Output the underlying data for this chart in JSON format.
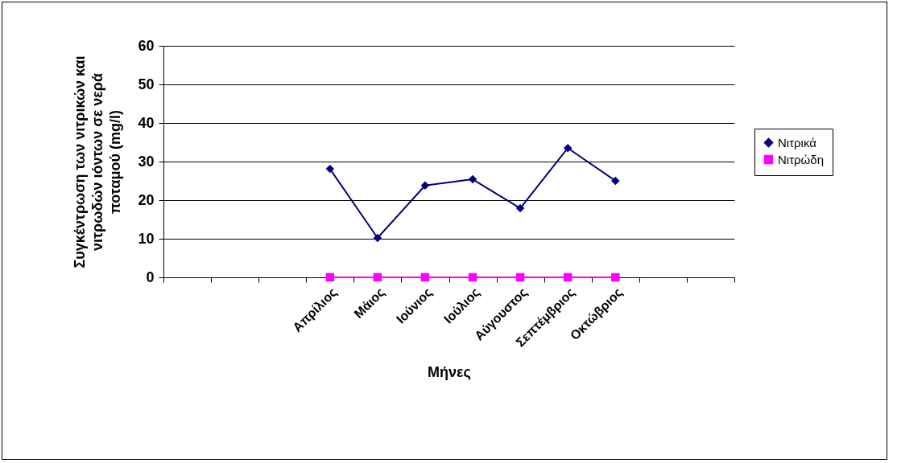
{
  "chart_data": {
    "type": "line",
    "xlabel": "Μήνες",
    "ylabel": "Συγκέντρωση των νιτρικών και νιτρωδών ιόντων σε νερά ποταμού (mg/l)",
    "categories": [
      null,
      null,
      null,
      "Απρίλιος",
      "Μάιος",
      "Ιούνιος",
      "Ιούλιος",
      "Αύγουστος",
      "Σεπτέμβριος",
      "Οκτώβριος",
      null,
      null
    ],
    "series": [
      {
        "name": "Νιτρικά",
        "color": "#000080",
        "marker": "diamond",
        "values": [
          null,
          null,
          null,
          28.1,
          10.2,
          23.8,
          25.4,
          17.9,
          33.5,
          25.0,
          null,
          null
        ]
      },
      {
        "name": "Νιτρώδη",
        "color": "#ff00ff",
        "marker": "square",
        "values": [
          null,
          null,
          null,
          0,
          0,
          0,
          0,
          0,
          0,
          0,
          null,
          null
        ]
      }
    ],
    "ylim": [
      0,
      60
    ],
    "yticks": [
      0,
      10,
      20,
      30,
      40,
      50,
      60
    ],
    "grid": "y",
    "legend": "right"
  }
}
